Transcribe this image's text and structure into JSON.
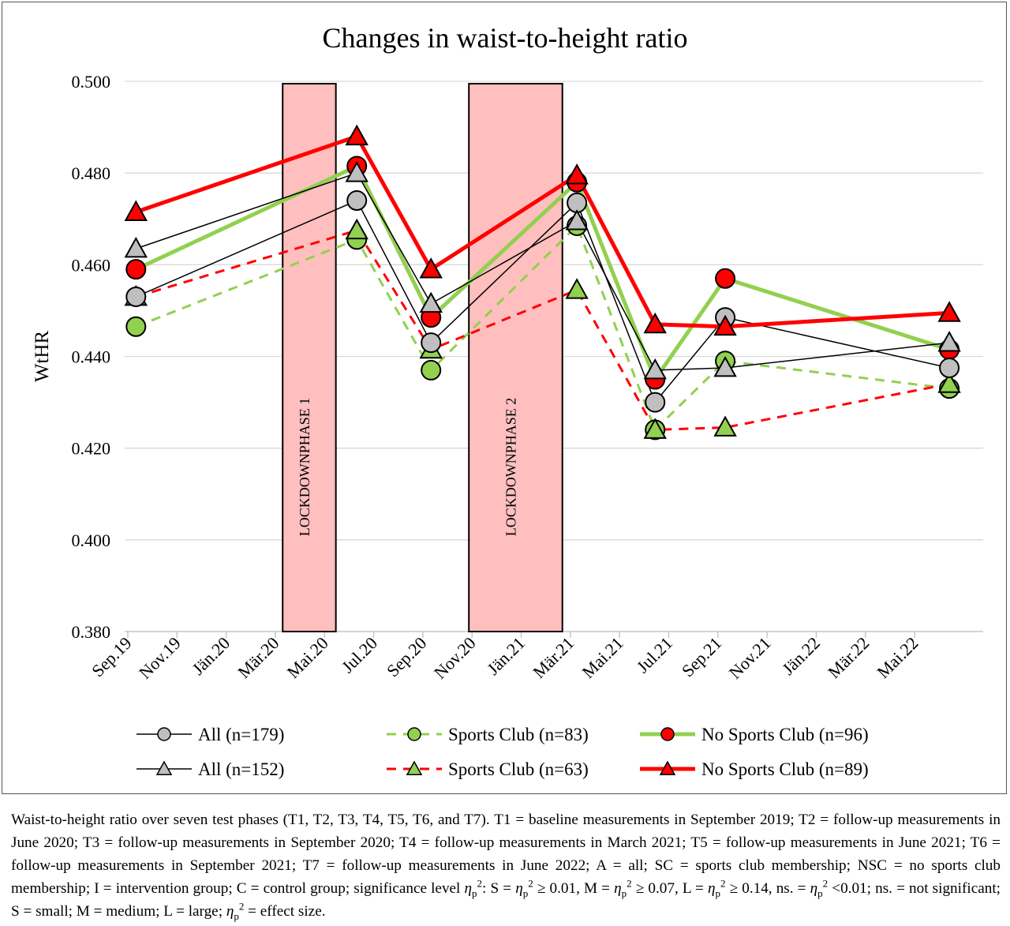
{
  "chart_data": {
    "type": "line",
    "title": "Changes in waist-to-height ratio",
    "ylabel": "WtHR",
    "xlabel": "",
    "ylim": [
      0.38,
      0.5
    ],
    "yticks": [
      "0.380",
      "0.400",
      "0.420",
      "0.440",
      "0.460",
      "0.480",
      "0.500"
    ],
    "grid": true,
    "x_ticks": [
      "Sep.19",
      "Nov.19",
      "Jän.20",
      "Mär.20",
      "Mai.20",
      "Jul.20",
      "Sep.20",
      "Nov.20",
      "Jän.21",
      "Mär.21",
      "Mai.21",
      "Jul.21",
      "Sep.21",
      "Nov.21",
      "Jän.22",
      "Mär.22",
      "Mai.22"
    ],
    "x_range": [
      "2019-09-01",
      "2022-08-01"
    ],
    "lockdowns": [
      {
        "label": "LOCKDOWNPHASE 1",
        "start": "2020-03-15",
        "end": "2020-05-20",
        "fill": "#ffbfbf"
      },
      {
        "label": "LOCKDOWNPHASE 2",
        "start": "2020-11-01",
        "end": "2021-02-25",
        "fill": "#ffbfbf"
      }
    ],
    "series": [
      {
        "name": "All (n=179)",
        "marker": "circle",
        "marker_fill": "#bfbfbf",
        "line_color": "#000000",
        "line_style": "solid",
        "line_width": 1.5,
        "points": [
          [
            "2019-09-15",
            0.453
          ],
          [
            "2020-06-15",
            0.474
          ],
          [
            "2020-09-15",
            0.443
          ],
          [
            "2021-03-15",
            0.4735
          ],
          [
            "2021-06-20",
            0.43
          ],
          [
            "2021-09-15",
            0.4485
          ],
          [
            "2022-06-20",
            0.4375
          ]
        ]
      },
      {
        "name": "Sports Club (n=83)",
        "marker": "circle",
        "marker_fill": "#92d050",
        "line_color": "#92d050",
        "line_style": "dashed",
        "line_width": 3,
        "points": [
          [
            "2019-09-15",
            0.4465
          ],
          [
            "2020-06-15",
            0.4655
          ],
          [
            "2020-09-15",
            0.437
          ],
          [
            "2021-03-15",
            0.4685
          ],
          [
            "2021-06-20",
            0.424
          ],
          [
            "2021-09-15",
            0.439
          ],
          [
            "2022-06-20",
            0.433
          ]
        ]
      },
      {
        "name": "No Sports Club (n=96)",
        "marker": "circle",
        "marker_fill": "#ff0000",
        "line_color": "#92d050",
        "line_style": "solid",
        "line_width": 5,
        "points": [
          [
            "2019-09-15",
            0.459
          ],
          [
            "2020-06-15",
            0.4815
          ],
          [
            "2020-09-15",
            0.4485
          ],
          [
            "2021-03-15",
            0.478
          ],
          [
            "2021-06-20",
            0.435
          ],
          [
            "2021-09-15",
            0.457
          ],
          [
            "2022-06-20",
            0.4415
          ]
        ]
      },
      {
        "name": "All (n=152)",
        "marker": "triangle",
        "marker_fill": "#bfbfbf",
        "line_color": "#000000",
        "line_style": "solid",
        "line_width": 1.5,
        "points": [
          [
            "2019-09-15",
            0.4635
          ],
          [
            "2020-06-15",
            0.48
          ],
          [
            "2020-09-15",
            0.4515
          ],
          [
            "2021-03-15",
            0.4695
          ],
          [
            "2021-06-20",
            0.437
          ],
          [
            "2021-09-15",
            0.4375
          ],
          [
            "2022-06-20",
            0.443
          ]
        ]
      },
      {
        "name": "Sports Club (n=63)",
        "marker": "triangle",
        "marker_fill": "#92d050",
        "line_color": "#ff0000",
        "line_style": "dashed",
        "line_width": 3,
        "points": [
          [
            "2019-09-15",
            0.453
          ],
          [
            "2020-06-15",
            0.4675
          ],
          [
            "2020-09-15",
            0.4415
          ],
          [
            "2021-03-15",
            0.4545
          ],
          [
            "2021-06-20",
            0.424
          ],
          [
            "2021-09-15",
            0.4245
          ],
          [
            "2022-06-20",
            0.434
          ]
        ]
      },
      {
        "name": "No Sports Club (n=89)",
        "marker": "triangle",
        "marker_fill": "#ff0000",
        "line_color": "#ff0000",
        "line_style": "solid",
        "line_width": 5,
        "points": [
          [
            "2019-09-15",
            0.4715
          ],
          [
            "2020-06-15",
            0.488
          ],
          [
            "2020-09-15",
            0.459
          ],
          [
            "2021-03-15",
            0.4795
          ],
          [
            "2021-06-20",
            0.447
          ],
          [
            "2021-09-15",
            0.4465
          ],
          [
            "2022-06-20",
            0.4495
          ]
        ]
      }
    ],
    "legend": {
      "placement": "bottom",
      "order": [
        0,
        1,
        2,
        3,
        4,
        5
      ]
    },
    "caption": {
      "p1": "Waist-to-height ratio over seven test phases (T1, T2, T3, T4, T5, T6, and T7). T1 = baseline measurements in September 2019; T2 = follow-up measurements in June 2020; T3 = follow-up measurements in September 2020; T4 = follow-up measurements in March 2021; T5 = follow-up measurements in June 2021; T6 = follow-up measurements in September 2021; T7 = follow-up measurements in June 2022; A = all; SC = sports club membership; NSC = no sports club membership; I = intervention group; C = control group; significance level ",
      "eta": "η",
      "sub_p": "p",
      "sup_2": "2",
      "p2": ": S = ",
      "p3": " ≥ 0.01, M = ",
      "p4": " ≥ 0.07, L = ",
      "p5": " ≥ 0.14, ns. = ",
      "p6": " <0.01; ns. = not significant; S = small; M = medium; L = large; ",
      "p7": " = effect size."
    }
  }
}
